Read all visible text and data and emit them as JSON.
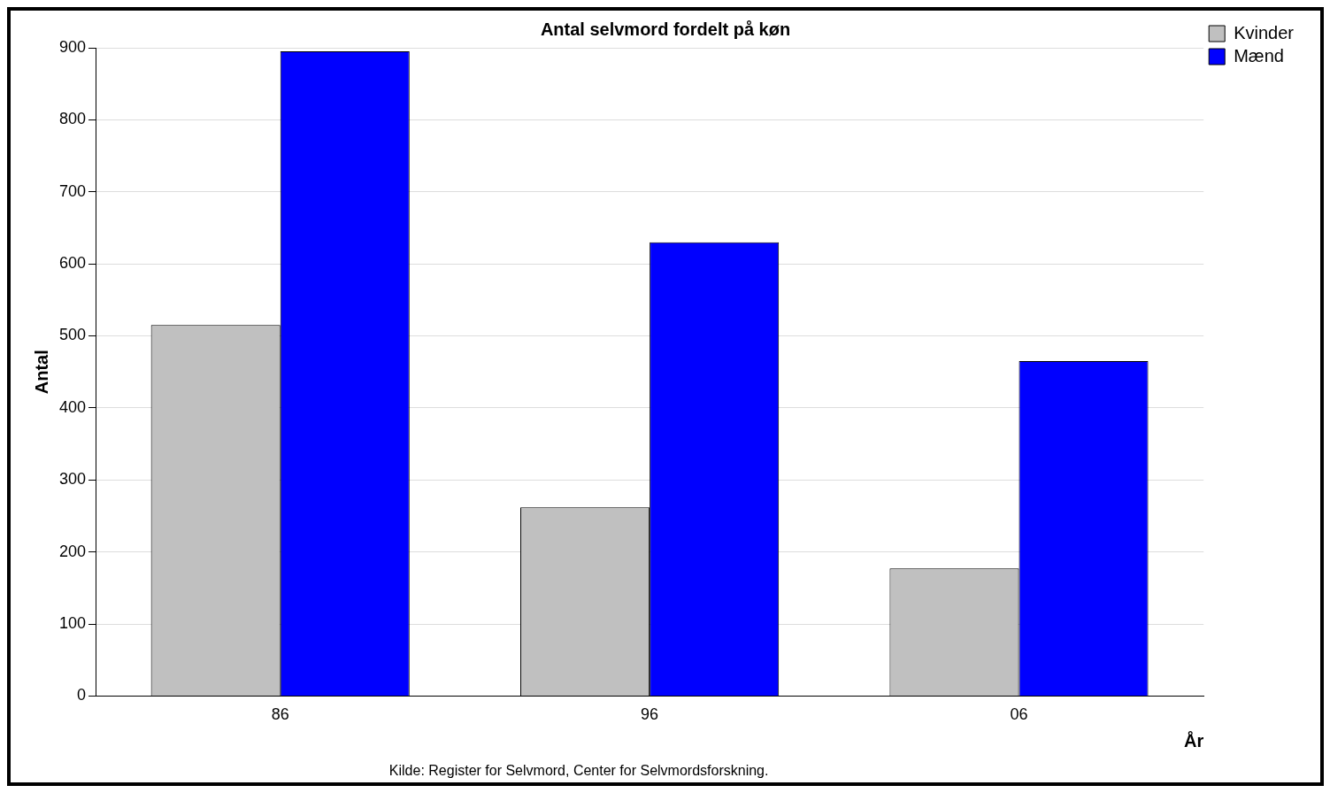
{
  "chart_data": {
    "type": "bar",
    "title": "Antal selvmord fordelt på køn",
    "xlabel": "År",
    "ylabel": "Antal",
    "categories": [
      "86",
      "96",
      "06"
    ],
    "series": [
      {
        "name": "Kvinder",
        "color": "#c0c0c0",
        "values": [
          515,
          262,
          177
        ]
      },
      {
        "name": "Mænd",
        "color": "#0000ff",
        "values": [
          895,
          630,
          465
        ]
      }
    ],
    "ylim": [
      0,
      900
    ],
    "yticks": [
      0,
      100,
      200,
      300,
      400,
      500,
      600,
      700,
      800,
      900
    ],
    "grid": "y",
    "legend": "top right",
    "annotations": [
      "Kilde: Register for Selvmord, Center for Selvmordsforskning."
    ]
  }
}
